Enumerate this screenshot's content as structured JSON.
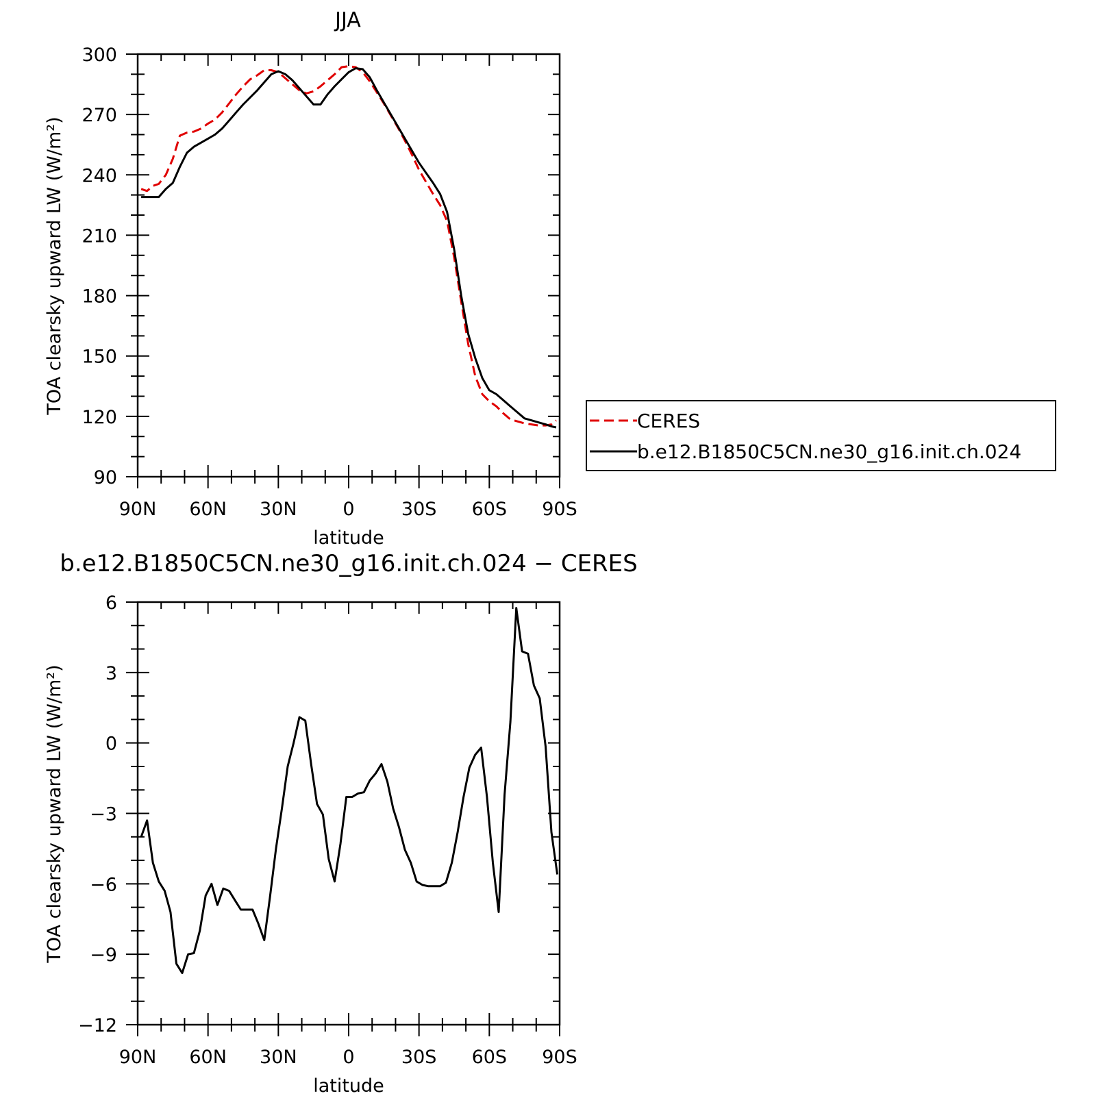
{
  "chart_data": [
    {
      "type": "line",
      "title": "JJA",
      "xlabel": "latitude",
      "ylabel": "TOA clearsky upward LW (W/m²)",
      "xlim": [
        90,
        -90
      ],
      "ylim": [
        90,
        300
      ],
      "xticks": [
        90,
        60,
        30,
        0,
        -30,
        -60,
        -90
      ],
      "xtick_labels": [
        "90N",
        "60N",
        "30N",
        "0",
        "30S",
        "60S",
        "90S"
      ],
      "yticks": [
        90,
        120,
        150,
        180,
        210,
        240,
        270,
        300
      ],
      "ytick_labels": [
        "90",
        "120",
        "150",
        "180",
        "210",
        "240",
        "270",
        "300"
      ],
      "legend_position": "right",
      "series": [
        {
          "name": "CERES",
          "color": "#e00000",
          "dash": "dashed",
          "x": [
            88.5,
            86,
            83.5,
            81,
            78,
            75,
            72,
            69,
            66,
            63,
            60,
            57,
            54,
            51,
            48,
            45,
            42,
            39,
            36,
            33,
            30,
            27,
            24,
            21,
            18,
            15,
            12,
            9,
            6,
            3,
            0,
            -3,
            -6,
            -9,
            -12,
            -15,
            -18,
            -21,
            -24,
            -27,
            -30,
            -33,
            -36,
            -39,
            -42,
            -45,
            -48,
            -51,
            -54,
            -57,
            -60,
            -63,
            -66,
            -69,
            -72,
            -75,
            -78,
            -81,
            -84,
            -86.5,
            -88.5
          ],
          "y": [
            233,
            232,
            234.5,
            235.5,
            240,
            248,
            259.5,
            261,
            261.5,
            263,
            265.5,
            267.5,
            271,
            275.5,
            280,
            284,
            287.5,
            289.5,
            292,
            292,
            291,
            288,
            285,
            282,
            280.5,
            281.5,
            284,
            287,
            290,
            293.5,
            294,
            293.5,
            291,
            286.5,
            281,
            275.5,
            269.5,
            263.5,
            257,
            250,
            242.5,
            236.5,
            230.5,
            225,
            217,
            199,
            177,
            156,
            140,
            131,
            127.5,
            125,
            121.5,
            118.5,
            117.5,
            116.5,
            116,
            115.5,
            115.5,
            116,
            118
          ]
        },
        {
          "name": "b.e12.B1850C5CN.ne30_g16.init.ch.024",
          "color": "#000000",
          "dash": "solid",
          "x": [
            88.5,
            86,
            83.5,
            81,
            78,
            75,
            72,
            69,
            66,
            63,
            60,
            57,
            54,
            51,
            48,
            45,
            42,
            39,
            36,
            33,
            30,
            27,
            24,
            21,
            18,
            15,
            12,
            9,
            6,
            3,
            0,
            -3,
            -6,
            -9,
            -12,
            -15,
            -18,
            -21,
            -24,
            -27,
            -30,
            -33,
            -36,
            -39,
            -42,
            -45,
            -48,
            -51,
            -54,
            -57,
            -60,
            -63,
            -66,
            -69,
            -72,
            -75,
            -78,
            -81,
            -84,
            -86.5,
            -88.5
          ],
          "y": [
            229,
            229,
            229,
            229,
            233,
            236,
            244,
            251,
            254,
            256,
            258,
            260,
            263,
            267,
            271,
            275,
            278.5,
            282,
            286,
            290,
            291.5,
            290,
            287,
            283,
            279,
            275,
            275,
            280,
            284,
            287.5,
            291,
            293,
            292.5,
            288.5,
            282,
            276,
            270,
            264,
            258,
            252,
            246,
            241,
            236,
            230.5,
            221.5,
            203,
            180,
            161,
            149,
            139,
            133,
            131,
            128,
            125,
            122,
            119,
            118,
            117,
            116,
            115,
            114.5
          ]
        }
      ]
    },
    {
      "type": "line",
      "title": "b.e12.B1850C5CN.ne30_g16.init.ch.024 − CERES",
      "xlabel": "latitude",
      "ylabel": "TOA clearsky upward LW (W/m²)",
      "xlim": [
        90,
        -90
      ],
      "ylim": [
        -12,
        6
      ],
      "xticks": [
        90,
        60,
        30,
        0,
        -30,
        -60,
        -90
      ],
      "xtick_labels": [
        "90N",
        "60N",
        "30N",
        "0",
        "30S",
        "60S",
        "90S"
      ],
      "yticks": [
        -12,
        -9,
        -6,
        -3,
        0,
        3,
        6
      ],
      "ytick_labels": [
        "−12",
        "−9",
        "−6",
        "−3",
        "0",
        "3",
        "6"
      ],
      "series": [
        {
          "color": "#000000",
          "dash": "solid",
          "x": [
            88.5,
            86,
            83.5,
            81,
            78.5,
            76,
            73.5,
            71,
            68.5,
            66,
            63.5,
            61,
            58.5,
            56,
            53.5,
            51,
            48.5,
            46,
            43.5,
            41,
            38.5,
            36,
            33.5,
            31,
            28.5,
            26,
            23.5,
            21,
            18.5,
            16,
            13.5,
            11,
            8.5,
            6,
            3.5,
            1,
            -1.5,
            -4,
            -6.5,
            -9,
            -11.5,
            -14,
            -16.5,
            -19,
            -21.5,
            -24,
            -26.5,
            -29,
            -31.5,
            -34,
            -36.5,
            -39,
            -41.5,
            -44,
            -46.5,
            -49,
            -51.5,
            -54,
            -56.5,
            -59,
            -61.5,
            -64,
            -66.5,
            -69,
            -71.5,
            -74,
            -76.5,
            -79,
            -81.5,
            -84,
            -86.5,
            -89
          ],
          "y": [
            -4.0,
            -3.3,
            -5.1,
            -5.9,
            -6.3,
            -7.2,
            -9.4,
            -9.8,
            -9.0,
            -8.95,
            -8.0,
            -6.5,
            -6.0,
            -6.9,
            -6.2,
            -6.3,
            -6.7,
            -7.1,
            -7.1,
            -7.1,
            -7.7,
            -8.4,
            -6.5,
            -4.5,
            -2.8,
            -1.0,
            0.0,
            1.1,
            0.95,
            -0.9,
            -2.6,
            -3.05,
            -4.95,
            -5.9,
            -4.3,
            -2.3,
            -2.3,
            -2.15,
            -2.1,
            -1.6,
            -1.3,
            -0.9,
            -1.65,
            -2.8,
            -3.6,
            -4.55,
            -5.1,
            -5.9,
            -6.05,
            -6.1,
            -6.1,
            -6.1,
            -5.95,
            -5.1,
            -3.8,
            -2.3,
            -1.05,
            -0.5,
            -0.2,
            -2.3,
            -5.1,
            -7.2,
            -2.2,
            0.9,
            5.75,
            3.9,
            3.8,
            2.45,
            1.9,
            -0.15,
            -3.8,
            -5.6
          ]
        }
      ]
    }
  ]
}
